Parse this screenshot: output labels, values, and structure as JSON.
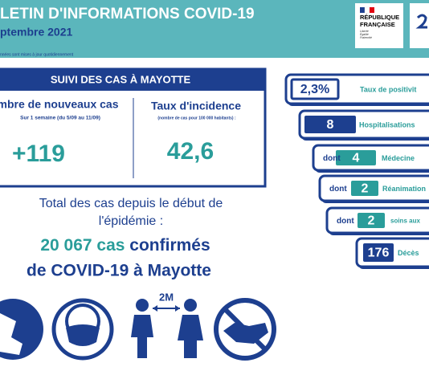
{
  "header": {
    "title": "LETIN D'INFORMATIONS COVID-19",
    "subtitle": "ptembre 2021",
    "note": "nnées sont mises à jour quotidiennement",
    "logo": {
      "line1": "RÉPUBLIQUE",
      "line2": "FRANÇAISE",
      "motto": [
        "Liberté",
        "Égalité",
        "Fraternité"
      ]
    }
  },
  "summary": {
    "title": "SUIVI DES CAS À MAYOTTE",
    "new_cases": {
      "label": "mbre de nouveaux cas",
      "period": "Sur 1 semaine (du 5/09 au 11/09)",
      "value": "+119"
    },
    "incidence": {
      "label": "Taux d'incidence",
      "note": "(nombre de cas pour 100 000 habitants) :",
      "value": "42,6"
    }
  },
  "total": {
    "line1": "Total des cas depuis le début de",
    "line2": "l'épidémie :",
    "count": "20 067 cas",
    "count_suffix": "confirmés",
    "line3": "de COVID-19 à Mayotte"
  },
  "stats": [
    {
      "value": "2,3%",
      "label": "Taux de positivit"
    },
    {
      "value": "8",
      "label": "Hospitalisations"
    },
    {
      "prefix": "dont",
      "value": "4",
      "label": "Médecine"
    },
    {
      "prefix": "dont",
      "value": "2",
      "label": "Réanimation"
    },
    {
      "prefix": "dont",
      "value": "2",
      "label": "soins aux"
    },
    {
      "value": "176",
      "label": "Décès"
    }
  ],
  "icons": {
    "distance": "2M"
  }
}
